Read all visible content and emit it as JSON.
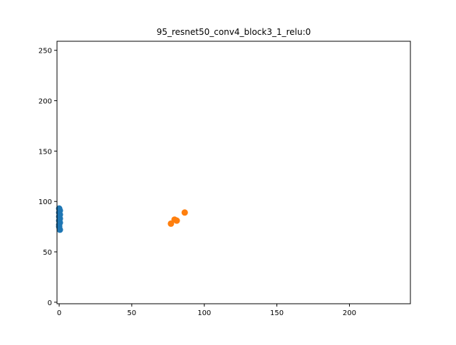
{
  "chart_data": {
    "type": "scatter",
    "title": "95_resnet50_conv4_block3_1_relu:0",
    "xlabel": "",
    "ylabel": "",
    "xlim": [
      -1.5,
      242
    ],
    "ylim": [
      -1.5,
      259
    ],
    "xticks": [
      0,
      50,
      100,
      150,
      200
    ],
    "yticks": [
      0,
      50,
      100,
      150,
      200,
      250
    ],
    "xtick_labels": [
      "0",
      "50",
      "100",
      "150",
      "200"
    ],
    "ytick_labels": [
      "0",
      "50",
      "100",
      "150",
      "200",
      "250"
    ],
    "grid": false,
    "series": [
      {
        "color": "#1f77b4",
        "points": [
          {
            "x": 0,
            "y": 93
          },
          {
            "x": 0.5,
            "y": 91
          },
          {
            "x": 0,
            "y": 89
          },
          {
            "x": 0.5,
            "y": 87
          },
          {
            "x": 0,
            "y": 85
          },
          {
            "x": 0.5,
            "y": 83
          },
          {
            "x": 0,
            "y": 81
          },
          {
            "x": 0.5,
            "y": 79
          },
          {
            "x": 0,
            "y": 77
          },
          {
            "x": 0,
            "y": 75
          },
          {
            "x": 0.5,
            "y": 72
          }
        ]
      },
      {
        "color": "#ff7f0e",
        "points": [
          {
            "x": 77,
            "y": 78
          },
          {
            "x": 79.5,
            "y": 82
          },
          {
            "x": 81,
            "y": 81
          },
          {
            "x": 86.5,
            "y": 89
          }
        ]
      }
    ]
  }
}
